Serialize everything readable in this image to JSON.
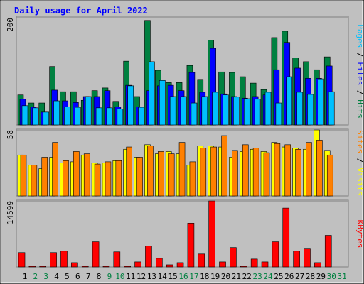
{
  "chart_data": [
    {
      "type": "bar",
      "title": "Daily usage for April 2022",
      "ylim": [
        0,
        200
      ],
      "yticks": [
        200
      ],
      "legend_separator": " / ",
      "series": [
        {
          "name": "Hits",
          "color": "#008040",
          "values": [
            56,
            41,
            41,
            109,
            62,
            62,
            46,
            64,
            69,
            44,
            119,
            53,
            195,
            102,
            79,
            79,
            111,
            85,
            158,
            99,
            98,
            90,
            78,
            66,
            163,
            175,
            125,
            118,
            103,
            127,
            null
          ]
        },
        {
          "name": "Files",
          "color": "#0000ff",
          "values": [
            48,
            34,
            24,
            65,
            45,
            42,
            53,
            53,
            64,
            34,
            74,
            34,
            64,
            73,
            74,
            64,
            98,
            61,
            143,
            58,
            53,
            50,
            53,
            56,
            103,
            154,
            106,
            87,
            87,
            110,
            null
          ]
        },
        {
          "name": "Pages",
          "color": "#00c0ff",
          "values": [
            36,
            32,
            24,
            45,
            34,
            33,
            53,
            32,
            32,
            30,
            73,
            33,
            118,
            83,
            53,
            53,
            41,
            53,
            61,
            56,
            52,
            49,
            48,
            61,
            41,
            90,
            61,
            57,
            86,
            62,
            null
          ]
        }
      ]
    },
    {
      "type": "bar",
      "ylim": [
        0,
        58
      ],
      "yticks": [
        58
      ],
      "legend_separator": " / ",
      "series": [
        {
          "name": "Visits",
          "color": "#ffff00",
          "values": [
            36,
            27,
            24,
            34,
            29,
            30,
            36,
            29,
            29,
            31,
            41,
            34,
            45,
            37,
            39,
            37,
            27,
            44,
            44,
            43,
            34,
            39,
            41,
            39,
            47,
            43,
            42,
            41,
            58,
            40,
            null
          ]
        },
        {
          "name": "Sites",
          "color": "#ff8000",
          "values": [
            36,
            27,
            34,
            47,
            31,
            39,
            37,
            28,
            30,
            31,
            43,
            34,
            44,
            39,
            37,
            47,
            30,
            42,
            43,
            53,
            40,
            45,
            42,
            38,
            46,
            45,
            41,
            47,
            49,
            36,
            null
          ]
        }
      ]
    },
    {
      "type": "bar",
      "ylim": [
        0,
        14599
      ],
      "yticks": [
        14599
      ],
      "categories": [
        "1",
        "2",
        "3",
        "4",
        "5",
        "6",
        "7",
        "8",
        "9",
        "10",
        "11",
        "12",
        "13",
        "14",
        "15",
        "16",
        "17",
        "18",
        "19",
        "20",
        "21",
        "22",
        "23",
        "24",
        "25",
        "26",
        "27",
        "28",
        "29",
        "30",
        "31"
      ],
      "category_colors": [
        "#000000",
        "#008040",
        "#008040",
        "#000000",
        "#000000",
        "#000000",
        "#000000",
        "#000000",
        "#008040",
        "#008040",
        "#000000",
        "#000000",
        "#000000",
        "#000000",
        "#000000",
        "#008040",
        "#008040",
        "#000000",
        "#000000",
        "#000000",
        "#000000",
        "#000000",
        "#008040",
        "#008040",
        "#000000",
        "#000000",
        "#000000",
        "#000000",
        "#000000",
        "#008040",
        "#008040"
      ],
      "series": [
        {
          "name": "KBytes",
          "color": "#ff0000",
          "values": [
            3174,
            159,
            159,
            3174,
            3491,
            952,
            159,
            5554,
            159,
            3333,
            159,
            1111,
            4602,
            1904,
            476,
            952,
            9680,
            2856,
            14599,
            1111,
            4285,
            159,
            1746,
            1111,
            5554,
            13013,
            3491,
            4126,
            952,
            6982,
            null
          ]
        }
      ]
    }
  ]
}
